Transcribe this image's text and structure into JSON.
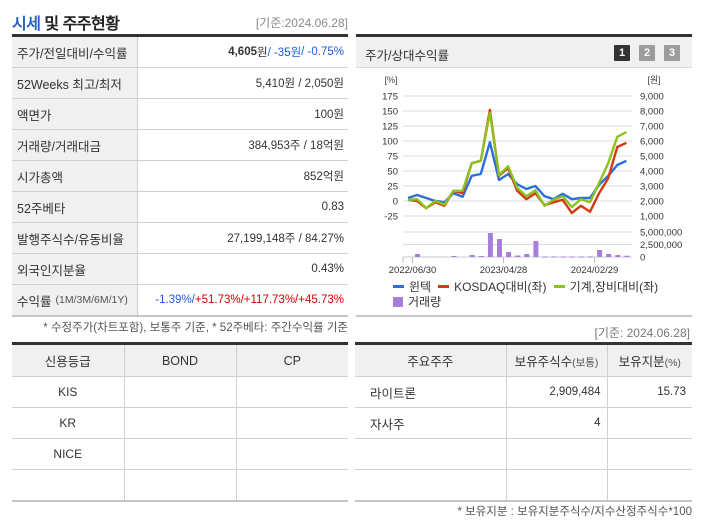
{
  "header": {
    "title_highlight": "시세",
    "title_rest": " 및 주주현황",
    "date": "[기준:2024.06.28]"
  },
  "summary": {
    "rows": [
      {
        "label": "주가/전일대비/수익률"
      },
      {
        "label": "52Weeks 최고/최저",
        "value": "5,410원 / 2,050원"
      },
      {
        "label": "액면가",
        "value": "100원"
      },
      {
        "label": "거래량/거래대금",
        "value": "384,953주 / 18억원"
      },
      {
        "label": "시가총액",
        "value": "852억원"
      },
      {
        "label": "52주베타",
        "value": "0.83"
      },
      {
        "label": "발행주식수/유동비율",
        "value": "27,199,148주 / 84.27%"
      },
      {
        "label": "외국인지분율",
        "value": "0.43%"
      },
      {
        "label": "수익률",
        "label_sub": "(1M/3M/6M/1Y)"
      }
    ],
    "price": "4,605",
    "price_unit": "원",
    "change": " / -35원",
    "change_pct": " / -0.75%",
    "returns": [
      {
        "text": "-1.39%/",
        "dir": "down"
      },
      {
        "text": " +51.73%/",
        "dir": "up"
      },
      {
        "text": " +117.73%/",
        "dir": "up"
      },
      {
        "text": " +45.73%",
        "dir": "up"
      }
    ],
    "note": "* 수정주가(차트포함), 보통주 기준, * 52주베타: 주간수익률 기준"
  },
  "chart_panel": {
    "title": "주가/상대수익률",
    "buttons": [
      "1",
      "2",
      "3"
    ],
    "active_button": 0,
    "date": "[기준: 2024.06.28]"
  },
  "chart_data": {
    "type": "line",
    "title": "주가/상대수익률",
    "left_axis": {
      "unit": "[%]",
      "min": -25,
      "max": 175,
      "ticks": [
        175,
        150,
        125,
        100,
        75,
        50,
        25,
        0,
        -25
      ]
    },
    "right_axis": {
      "unit": "[원]",
      "ticks": [
        "9,000",
        "8,000",
        "7,000",
        "6,000",
        "5,000",
        "4,000",
        "3,000",
        "2,000",
        "1,000"
      ]
    },
    "volume_axis": {
      "min": 0,
      "max": 5000000,
      "ticks": [
        {
          "label": "5,000,000",
          "value": 5000000
        },
        {
          "label": "2,500,000",
          "value": 2500000
        },
        {
          "label": "0",
          "value": 0
        }
      ]
    },
    "x_ticks": [
      {
        "label": "2022/06/30",
        "index": 0.5
      },
      {
        "label": "2023/04/28",
        "index": 10.5
      },
      {
        "label": "2024/02/29",
        "index": 20.5
      }
    ],
    "grid": true,
    "legend_position": "bottom",
    "series": [
      {
        "name": "윈텍",
        "color": "#2b6fdc",
        "values": [
          5,
          10,
          5,
          0,
          -2,
          13,
          7,
          42,
          45,
          98,
          35,
          45,
          28,
          20,
          25,
          8,
          3,
          12,
          3,
          5,
          5,
          27,
          42,
          60,
          67
        ]
      },
      {
        "name": "KOSDAQ대비(좌)",
        "color": "#d43a12",
        "values": [
          2,
          0,
          -12,
          -2,
          -8,
          17,
          13,
          63,
          67,
          152,
          42,
          55,
          17,
          3,
          13,
          -7,
          -2,
          2,
          -20,
          -8,
          -18,
          13,
          38,
          90,
          97
        ]
      },
      {
        "name": "기계,장비대비(좌)",
        "color": "#8cc21e",
        "values": [
          2,
          3,
          -12,
          0,
          -6,
          17,
          17,
          63,
          67,
          147,
          43,
          58,
          22,
          8,
          18,
          -8,
          2,
          8,
          -10,
          3,
          -2,
          30,
          63,
          107,
          115
        ]
      }
    ],
    "volume": {
      "name": "거래량",
      "color": "#a77fdb",
      "values": [
        0,
        600000,
        0,
        0,
        0,
        200000,
        0,
        400000,
        200000,
        4800000,
        3600000,
        1000000,
        300000,
        600000,
        3200000,
        100000,
        100000,
        100000,
        100000,
        100000,
        100000,
        1400000,
        600000,
        400000,
        250000
      ]
    }
  },
  "credit": {
    "headers": [
      "신용등급",
      "BOND",
      "CP"
    ],
    "rows": [
      [
        "KIS",
        "",
        ""
      ],
      [
        "KR",
        "",
        ""
      ],
      [
        "NICE",
        "",
        ""
      ],
      [
        "",
        "",
        ""
      ]
    ]
  },
  "holders": {
    "headers": [
      {
        "main": "주요주주",
        "sub": ""
      },
      {
        "main": "보유주식수",
        "sub": "(보통)"
      },
      {
        "main": "보유지분",
        "sub": "(%)"
      }
    ],
    "rows": [
      [
        "라이트론",
        "2,909,484",
        "15.73"
      ],
      [
        "자사주",
        "4",
        ""
      ],
      [
        "",
        "",
        ""
      ],
      [
        "",
        "",
        ""
      ]
    ],
    "note": "* 보유지분 : 보유지분주식수/지수산정주식수*100"
  }
}
